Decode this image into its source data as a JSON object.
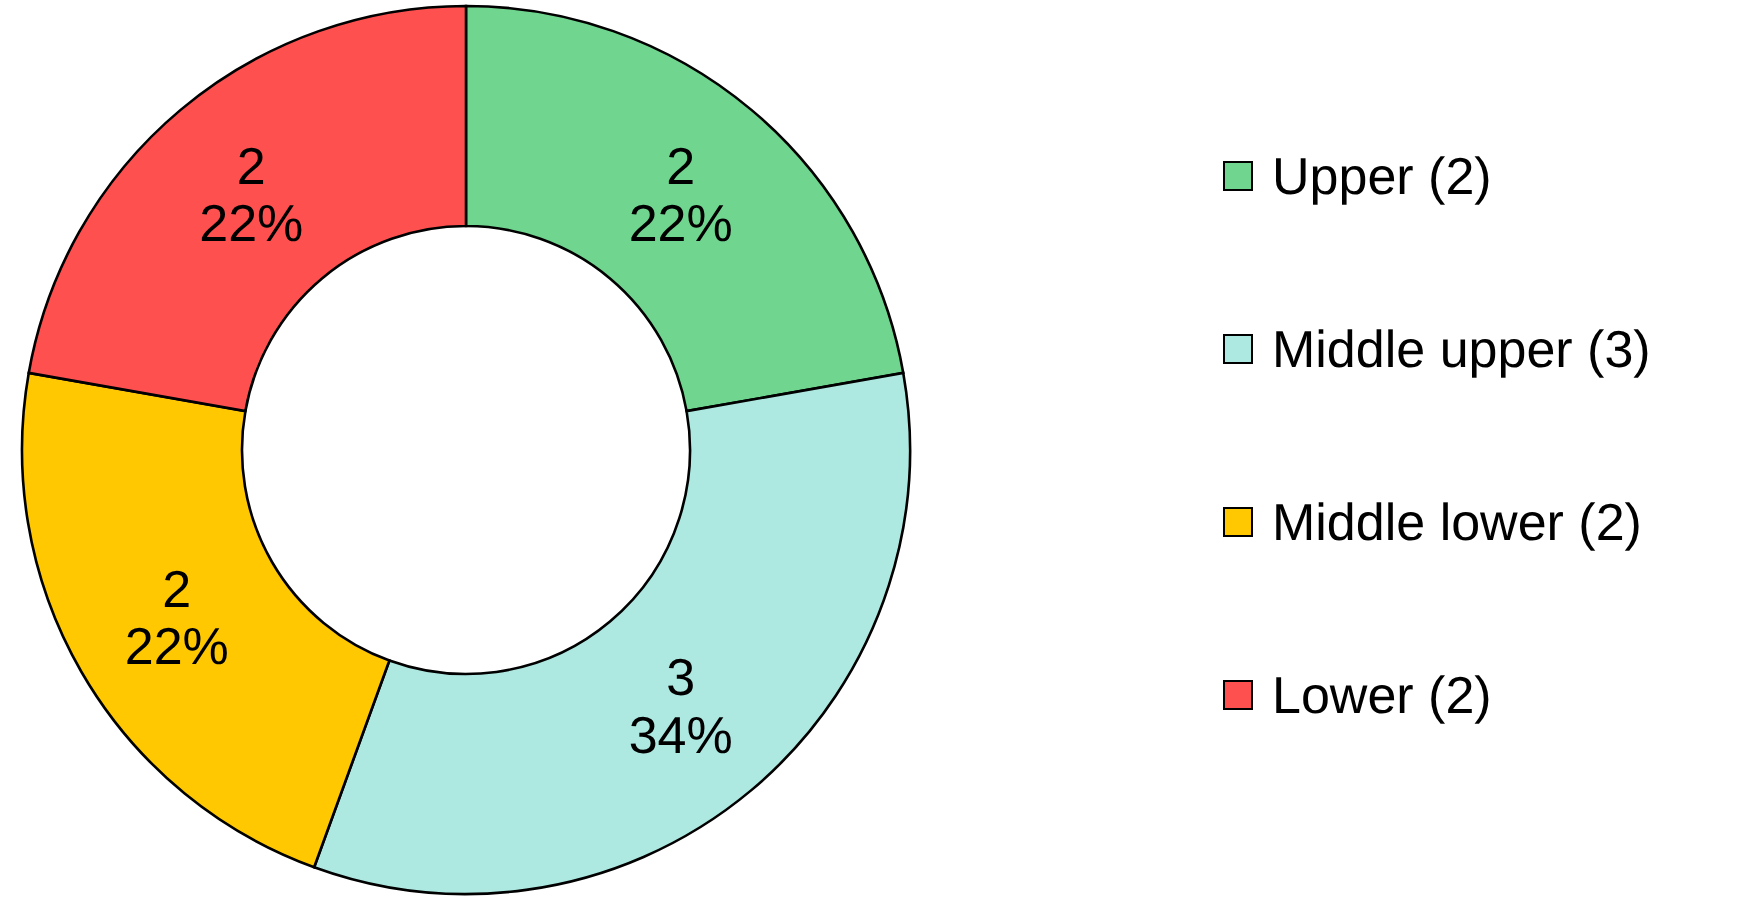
{
  "chart_data": {
    "type": "donut",
    "categories": [
      "Upper (2)",
      "Middle upper (3)",
      "Middle lower (2)",
      "Lower (2)"
    ],
    "values": [
      2,
      3,
      2,
      2
    ],
    "colors": [
      "#6fd58f",
      "#ade8e1",
      "#ffc800",
      "#ff5050"
    ],
    "value_labels": [
      "2\n22%",
      "3\n34%",
      "2\n22%",
      "2\n22%"
    ],
    "legend": "right"
  }
}
